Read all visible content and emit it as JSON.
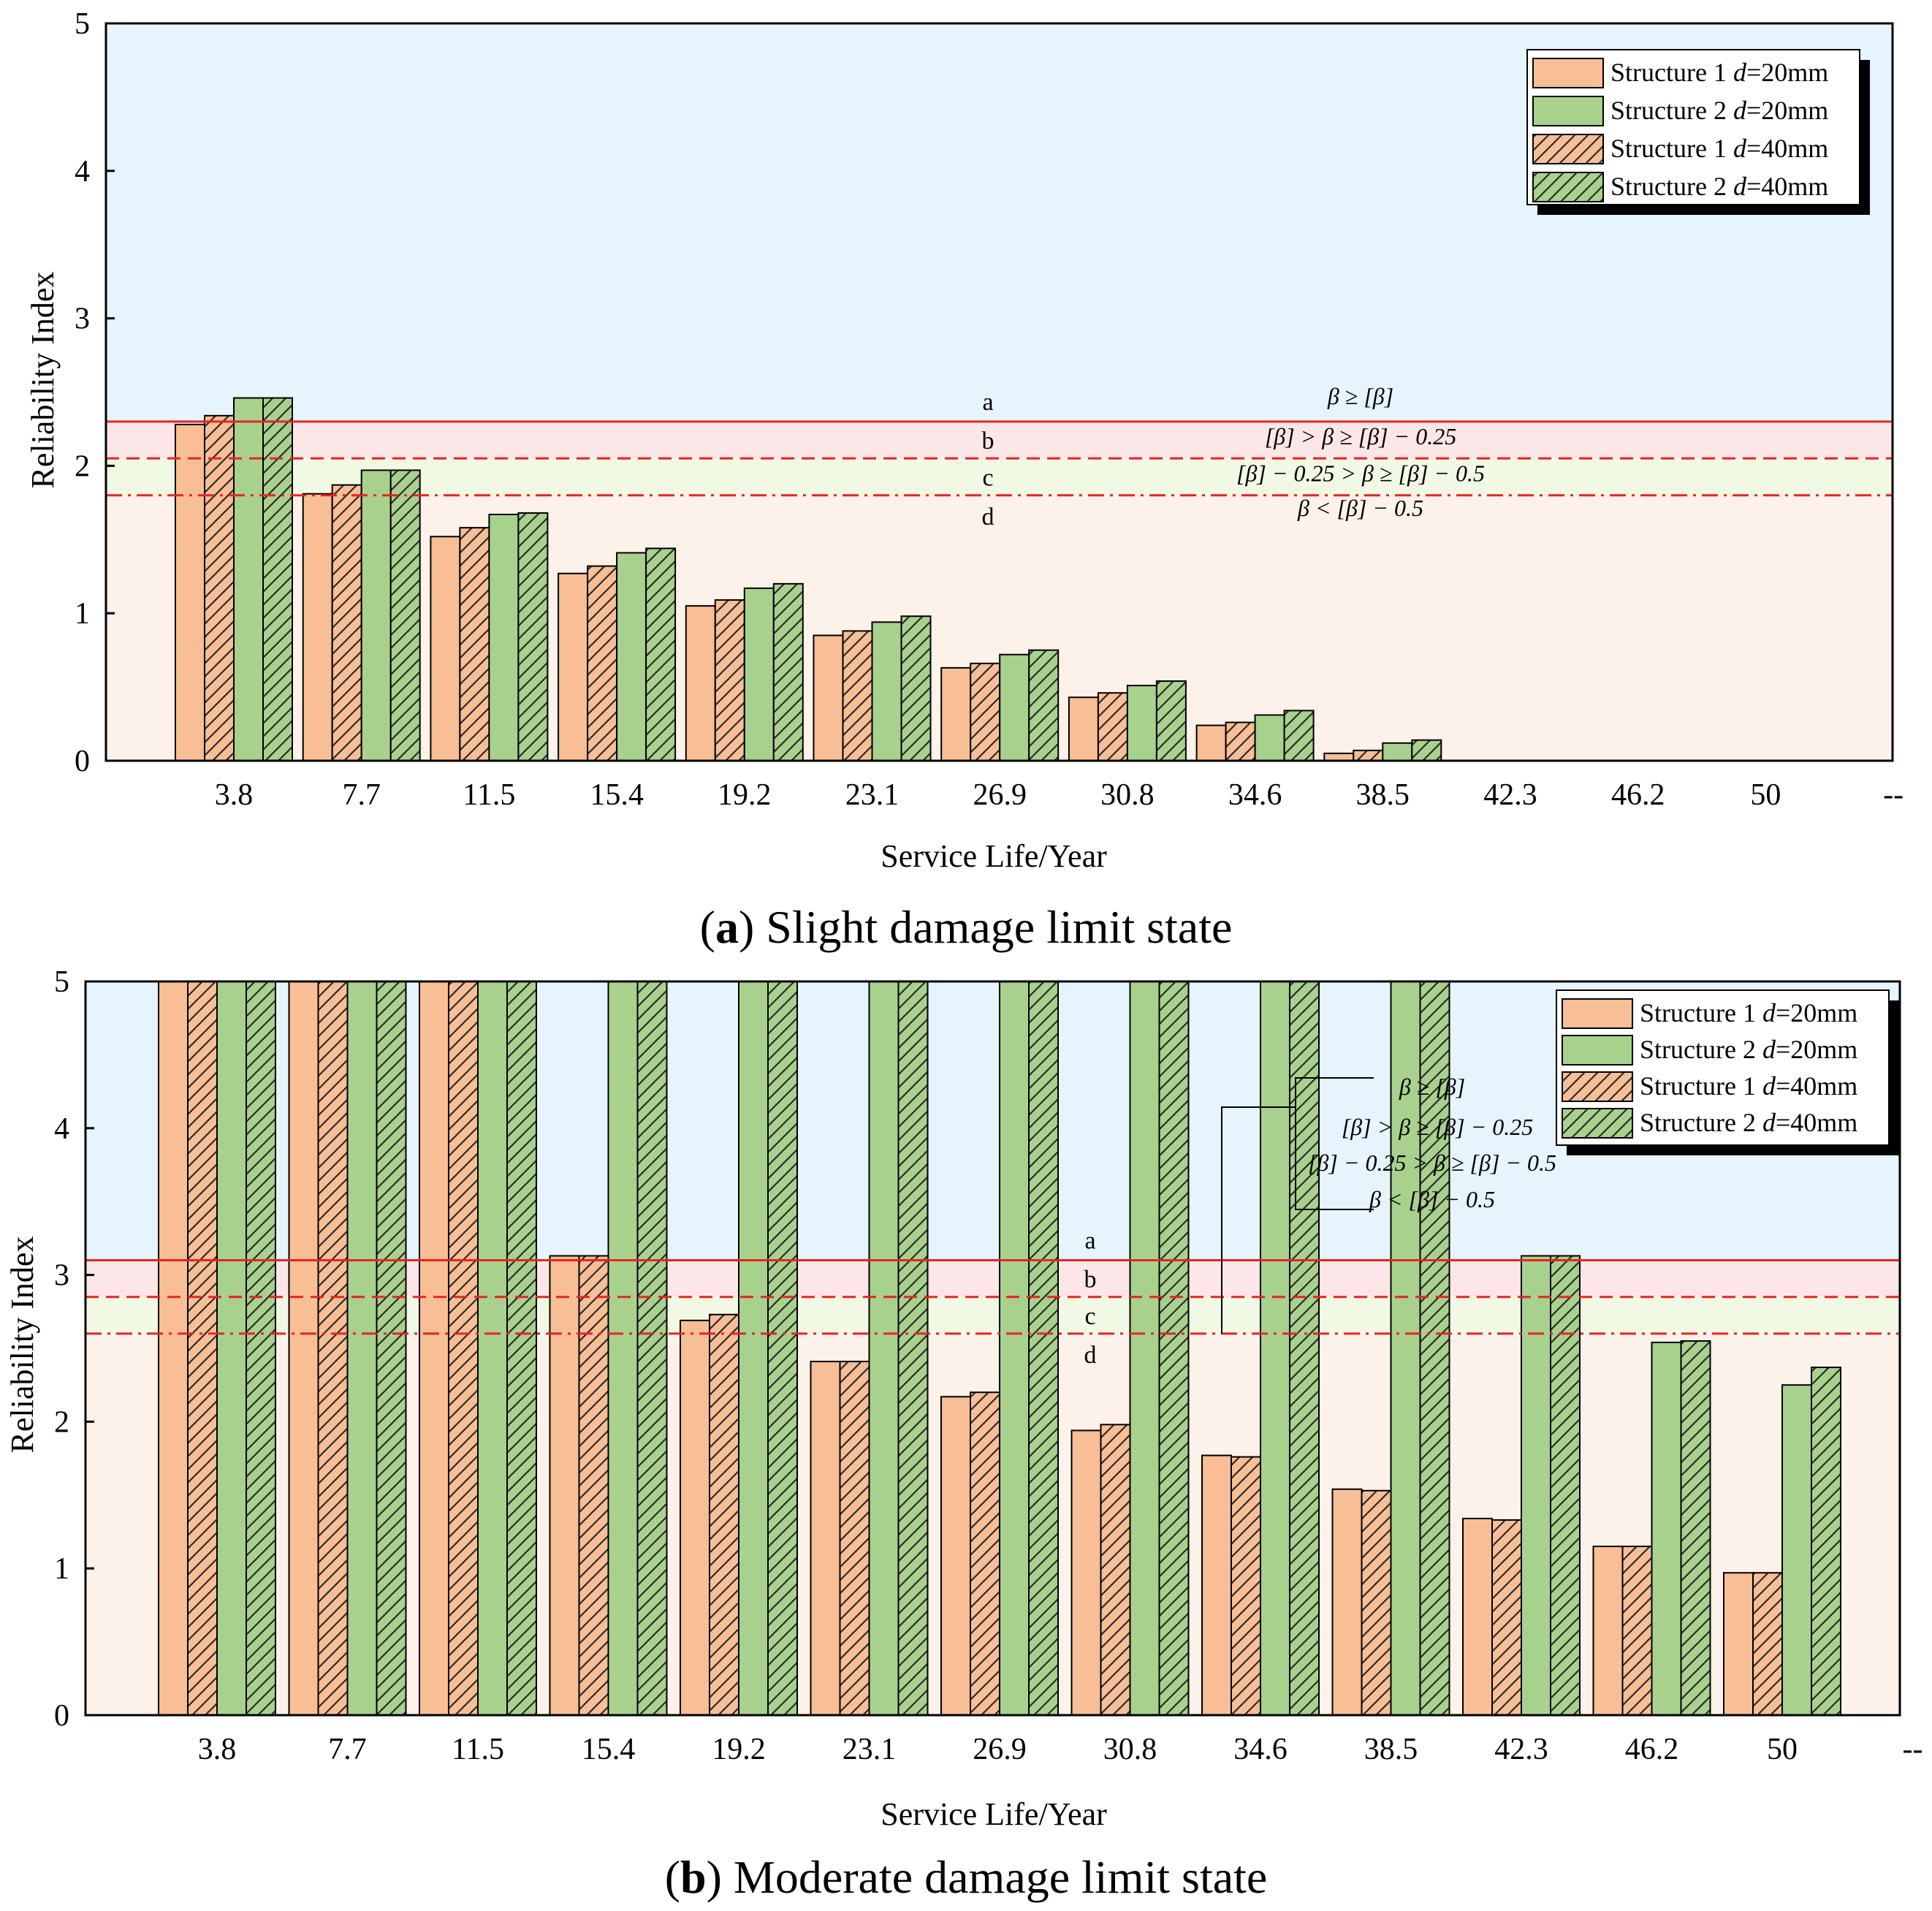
{
  "chart_data": [
    {
      "id": "a",
      "type": "bar",
      "caption_letter": "a",
      "caption_text": " Slight damage limit state",
      "xlabel": "Service Life/Year",
      "ylabel": "Reliability Index",
      "ylim": [
        0,
        5
      ],
      "yticks": [
        "0",
        "1",
        "2",
        "3",
        "4",
        "5"
      ],
      "categories": [
        "3.8",
        "7.7",
        "11.5",
        "15.4",
        "19.2",
        "23.1",
        "26.9",
        "30.8",
        "34.6",
        "38.5",
        "42.3",
        "46.2",
        "50",
        "--"
      ],
      "series": [
        {
          "name": "Structure 1 d=20mm",
          "pattern": "solid-orange",
          "values": [
            2.28,
            1.81,
            1.52,
            1.27,
            1.05,
            0.85,
            0.63,
            0.43,
            0.24,
            0.05,
            0,
            0,
            0,
            0
          ]
        },
        {
          "name": "Structure 1 d=40mm",
          "pattern": "hatched-orange",
          "values": [
            2.34,
            1.87,
            1.58,
            1.32,
            1.09,
            0.88,
            0.66,
            0.46,
            0.26,
            0.07,
            0,
            0,
            0,
            0
          ]
        },
        {
          "name": "Structure 2 d=20mm",
          "pattern": "solid-green",
          "values": [
            2.46,
            1.97,
            1.67,
            1.41,
            1.17,
            0.94,
            0.72,
            0.51,
            0.31,
            0.12,
            0,
            0,
            0,
            0
          ]
        },
        {
          "name": "Structure 2 d=40mm",
          "pattern": "hatched-green",
          "values": [
            2.46,
            1.97,
            1.68,
            1.44,
            1.2,
            0.98,
            0.75,
            0.54,
            0.34,
            0.14,
            0,
            0,
            0,
            0
          ]
        }
      ],
      "thresholds": {
        "a": 2.3,
        "b": 2.05,
        "c": 1.8
      },
      "zone_labels": [
        "a",
        "b",
        "c",
        "d"
      ],
      "conditions": [
        "β ≥ [β]",
        "[β] > β ≥ [β] − 0.25",
        "[β] − 0.25 > β ≥ [β] − 0.5",
        "β < [β] − 0.5"
      ]
    },
    {
      "id": "b",
      "type": "bar",
      "caption_letter": "b",
      "caption_text": " Moderate damage limit state",
      "xlabel": "Service Life/Year",
      "ylabel": "Reliability Index",
      "ylim": [
        0,
        5
      ],
      "yticks": [
        "0",
        "1",
        "2",
        "3",
        "4",
        "5"
      ],
      "categories": [
        "3.8",
        "7.7",
        "11.5",
        "15.4",
        "19.2",
        "23.1",
        "26.9",
        "30.8",
        "34.6",
        "38.5",
        "42.3",
        "46.2",
        "50",
        "--"
      ],
      "series": [
        {
          "name": "Structure 1 d=20mm",
          "pattern": "solid-orange",
          "values": [
            5,
            5,
            5,
            3.13,
            2.69,
            2.41,
            2.17,
            1.94,
            1.77,
            1.54,
            1.34,
            1.15,
            0.97,
            0
          ]
        },
        {
          "name": "Structure 1 d=40mm",
          "pattern": "hatched-orange",
          "values": [
            5,
            5,
            5,
            3.13,
            2.73,
            2.41,
            2.2,
            1.98,
            1.76,
            1.53,
            1.33,
            1.15,
            0.97,
            0
          ]
        },
        {
          "name": "Structure 2 d=20mm",
          "pattern": "solid-green",
          "values": [
            5,
            5,
            5,
            5,
            5,
            5,
            5,
            5,
            5,
            5,
            3.13,
            2.54,
            2.25,
            0
          ]
        },
        {
          "name": "Structure 2 d=40mm",
          "pattern": "hatched-green",
          "values": [
            5,
            5,
            5,
            5,
            5,
            5,
            5,
            5,
            5,
            5,
            3.13,
            2.55,
            2.37,
            0
          ]
        }
      ],
      "thresholds": {
        "a": 3.1,
        "b": 2.85,
        "c": 2.6
      },
      "zone_labels": [
        "a",
        "b",
        "c",
        "d"
      ],
      "conditions": [
        "β ≥ [β]",
        "[β] > β ≥ [β] − 0.25",
        "[β] − 0.25 > β ≥ [β] − 0.5",
        "β < [β] − 0.5"
      ]
    }
  ],
  "legend": [
    {
      "prefix": "Structure 1 ",
      "var": "d",
      "suffix": "=20mm",
      "pattern": "solid-orange"
    },
    {
      "prefix": "Structure 2 ",
      "var": "d",
      "suffix": "=20mm",
      "pattern": "solid-green"
    },
    {
      "prefix": "Structure 1 ",
      "var": "d",
      "suffix": "=40mm",
      "pattern": "hatched-orange"
    },
    {
      "prefix": "Structure 2 ",
      "var": "d",
      "suffix": "=40mm",
      "pattern": "hatched-green"
    }
  ],
  "colors": {
    "orange": "#f8be96",
    "green": "#a9d18e",
    "zone_a": "#e6f4fd",
    "zone_b": "#fde6e8",
    "zone_c": "#f1f8e4",
    "zone_d": "#fdf2ea",
    "threshold": "#e52620"
  }
}
